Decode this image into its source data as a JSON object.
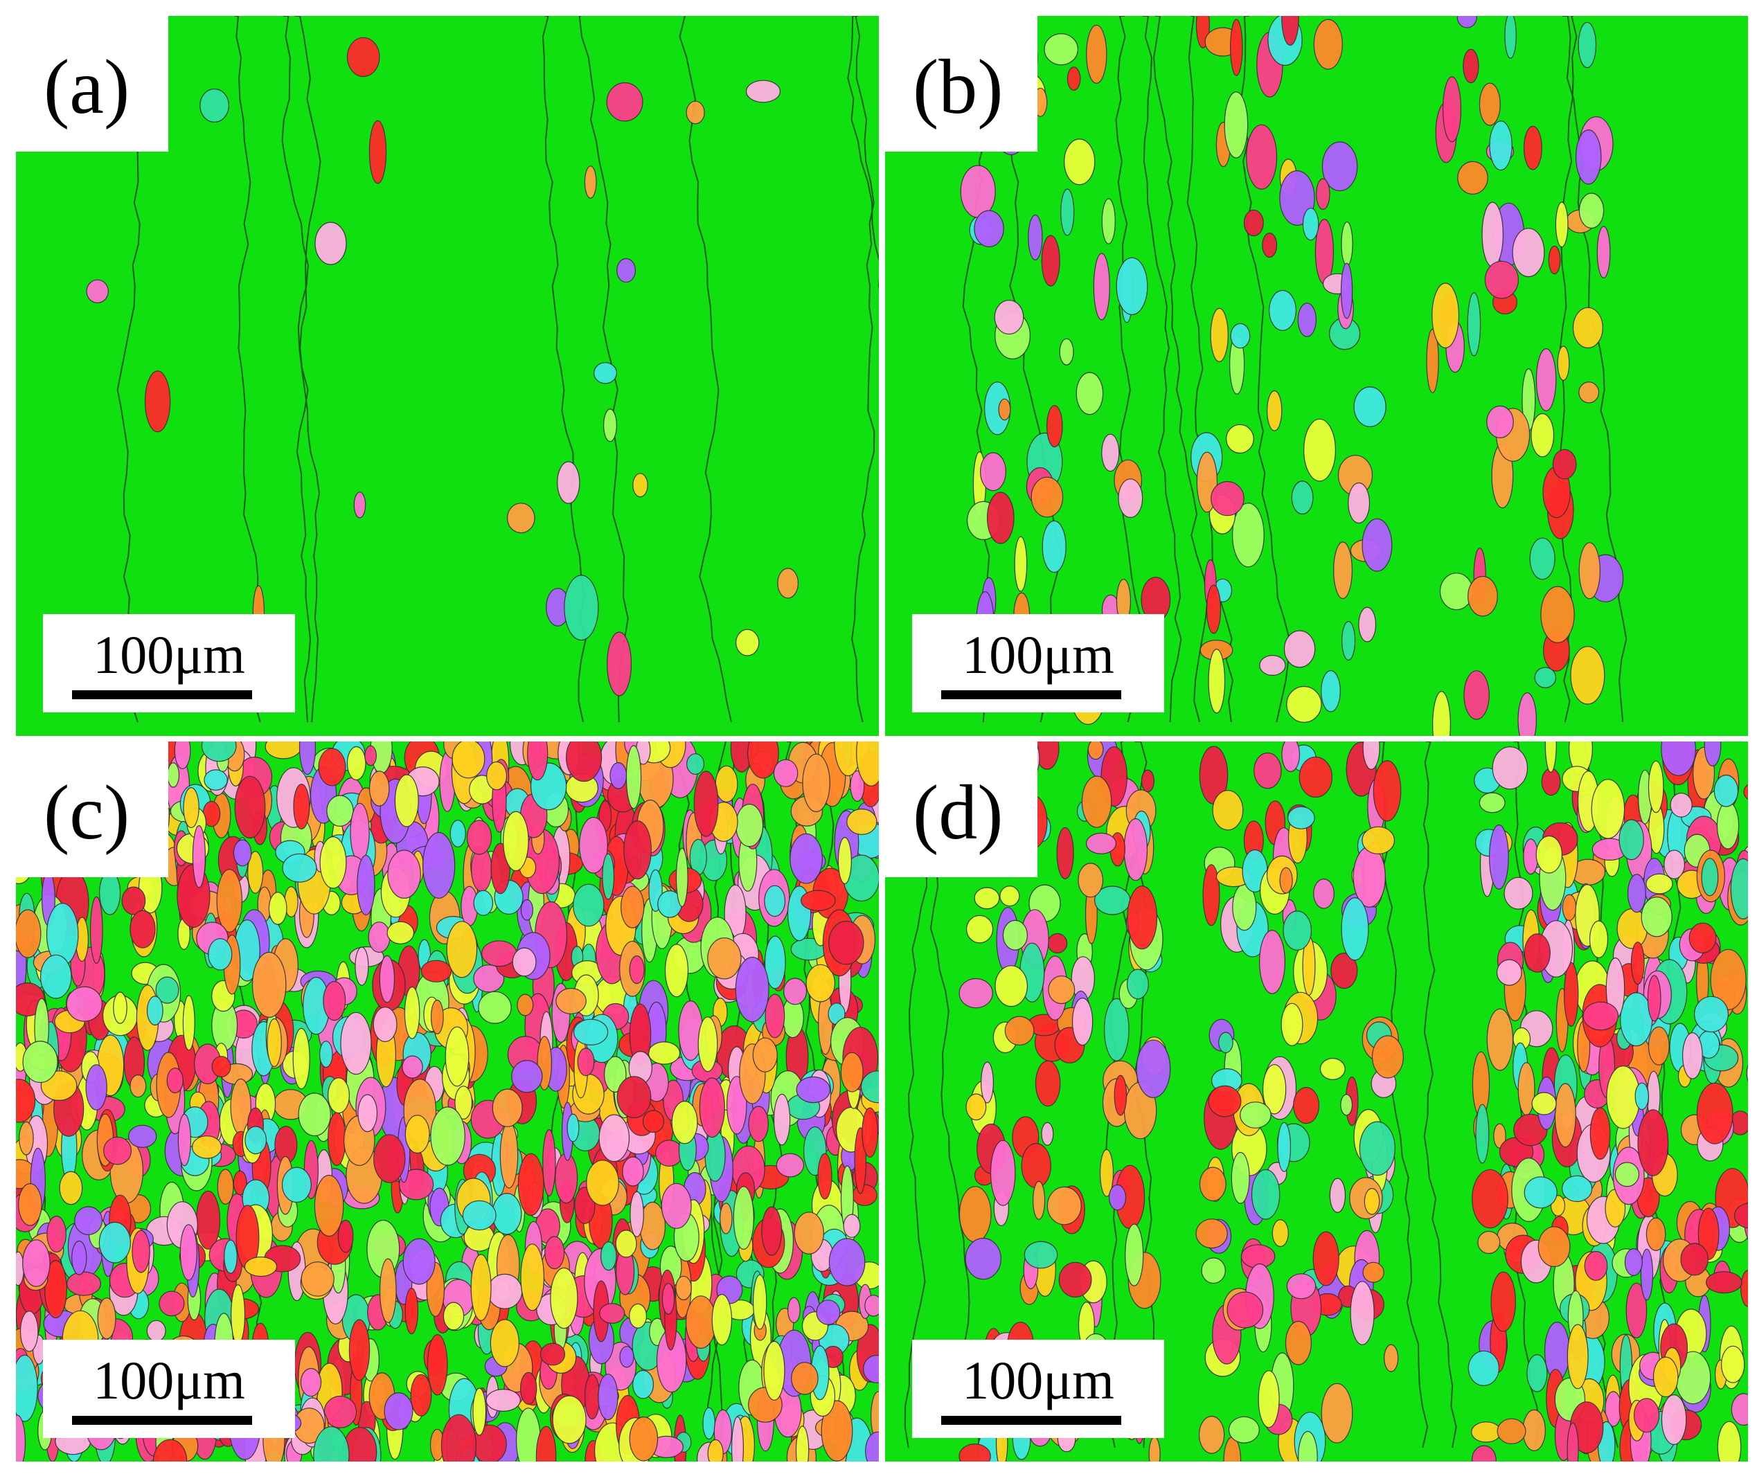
{
  "panels": [
    {
      "label": "(a)",
      "scale_bar": "100μm"
    },
    {
      "label": "(b)",
      "scale_bar": "100μm"
    },
    {
      "label": "(c)",
      "scale_bar": "100μm"
    },
    {
      "label": "(d)",
      "scale_bar": "100μm"
    }
  ]
}
